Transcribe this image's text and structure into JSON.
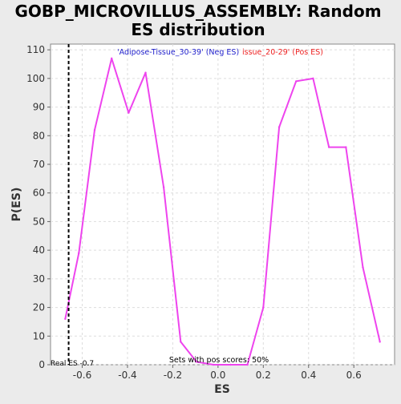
{
  "chart_data": {
    "type": "line",
    "title_lines": [
      "GOBP_MICROVILLUS_ASSEMBLY: Random",
      "ES distribution"
    ],
    "xlabel": "ES",
    "ylabel": "P(ES)",
    "xlim": [
      -0.74,
      0.78
    ],
    "ylim": [
      0,
      112
    ],
    "x_ticks": [
      "-0.6",
      "-0.4",
      "-0.2",
      "0.0",
      "0.2",
      "0.4",
      "0.6"
    ],
    "x_tick_values": [
      -0.6,
      -0.4,
      -0.2,
      0.0,
      0.2,
      0.4,
      0.6
    ],
    "y_ticks": [
      "0",
      "10",
      "20",
      "30",
      "40",
      "50",
      "60",
      "70",
      "80",
      "90",
      "100",
      "110"
    ],
    "y_tick_values": [
      0,
      10,
      20,
      30,
      40,
      50,
      60,
      70,
      80,
      90,
      100,
      110
    ],
    "grid": true,
    "series": [
      {
        "color": "#ee44ee",
        "x": [
          -0.675,
          -0.615,
          -0.545,
          -0.47,
          -0.395,
          -0.32,
          -0.24,
          -0.165,
          -0.095,
          -0.02,
          0.055,
          0.13,
          0.2,
          0.27,
          0.345,
          0.42,
          0.49,
          0.565,
          0.64,
          0.715
        ],
        "y": [
          16,
          39,
          82,
          107,
          88,
          102,
          62,
          8,
          1,
          0,
          0,
          0,
          20,
          83,
          99,
          100,
          76,
          76,
          34,
          8
        ]
      }
    ],
    "real_es": {
      "value": -0.66,
      "label": "Real ES -0.7",
      "color": "#000000"
    },
    "annotations": {
      "neg_label": "'Adipose-Tissue_30-39' (Neg ES)",
      "neg_color": "#2222cc",
      "pos_label": "issue_20-29' (Pos ES)",
      "pos_color": "#ee2222",
      "sets_label": "Sets with pos scores: 50%"
    }
  }
}
